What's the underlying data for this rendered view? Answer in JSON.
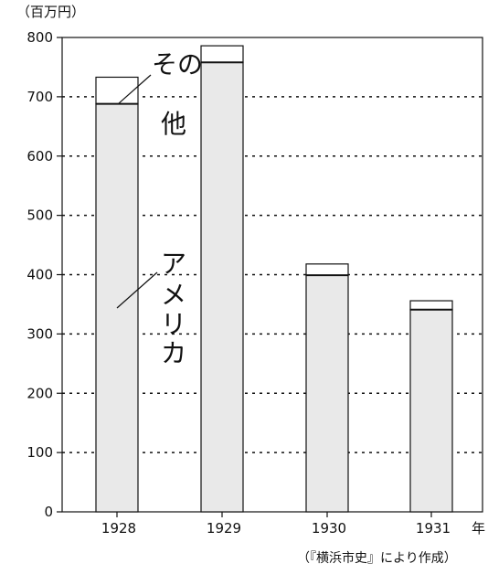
{
  "chart_data": {
    "type": "bar",
    "stacked": true,
    "unit_label": "（百万円）",
    "categories": [
      "1928",
      "1929",
      "1930",
      "1931"
    ],
    "x_suffix": "年",
    "series": [
      {
        "name": "アメリカ",
        "values": [
          688,
          758,
          399,
          341
        ],
        "color": "#e9e9e9"
      },
      {
        "name": "その他",
        "values": [
          45,
          28,
          19,
          15
        ],
        "color": "#ffffff"
      }
    ],
    "totals": [
      733,
      786,
      418,
      356
    ],
    "ylim": [
      0,
      800
    ],
    "yticks": [
      0,
      100,
      200,
      300,
      400,
      500,
      600,
      700,
      800
    ],
    "grid": "dotted-horizontal",
    "source": "（『横浜市史』により作成）",
    "annotations": [
      {
        "text": "その他",
        "series": "その他"
      },
      {
        "text": "アメリカ",
        "series": "アメリカ"
      }
    ]
  }
}
